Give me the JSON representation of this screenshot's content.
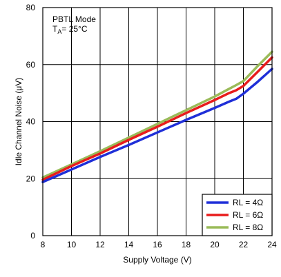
{
  "chart_data": {
    "type": "line",
    "xlabel": "Supply Voltage (V)",
    "ylabel": "Idle Channel Noise (μV)",
    "xlim": [
      8,
      24
    ],
    "ylim": [
      0,
      80
    ],
    "x_ticks": [
      "8",
      "10",
      "12",
      "14",
      "16",
      "18",
      "20",
      "22",
      "24"
    ],
    "y_ticks": [
      "0",
      "20",
      "40",
      "60",
      "80"
    ],
    "grid": true,
    "legend_position": "bottom-right",
    "annotation": {
      "line1": "PBTL Mode",
      "t_main": "T",
      "t_sub": "A",
      "t_rest": "= 25°C"
    },
    "series": [
      {
        "name": "RL = 4Ω",
        "color": "#1f2fd8",
        "x": [
          8,
          10,
          12,
          14,
          16,
          18,
          20,
          21,
          21.5,
          22,
          23,
          24
        ],
        "y": [
          18.8,
          23.2,
          27.6,
          31.8,
          36.2,
          40.6,
          44.8,
          47,
          48,
          49.8,
          54,
          58.5
        ]
      },
      {
        "name": "RL = 6Ω",
        "color": "#e81c1c",
        "x": [
          8,
          10,
          12,
          14,
          16,
          18,
          20,
          21,
          21.5,
          22,
          23,
          24
        ],
        "y": [
          19.6,
          24.4,
          28.8,
          33.6,
          38.2,
          43,
          47.6,
          50,
          51,
          52.5,
          57.5,
          62.5
        ]
      },
      {
        "name": "RL = 8Ω",
        "color": "#9abb59",
        "x": [
          8,
          10,
          12,
          14,
          16,
          18,
          20,
          21,
          21.5,
          22,
          23,
          24
        ],
        "y": [
          20.4,
          25,
          29.6,
          34.4,
          39.2,
          44,
          48.8,
          51.5,
          52.8,
          54.2,
          59.5,
          64.5
        ]
      }
    ]
  }
}
